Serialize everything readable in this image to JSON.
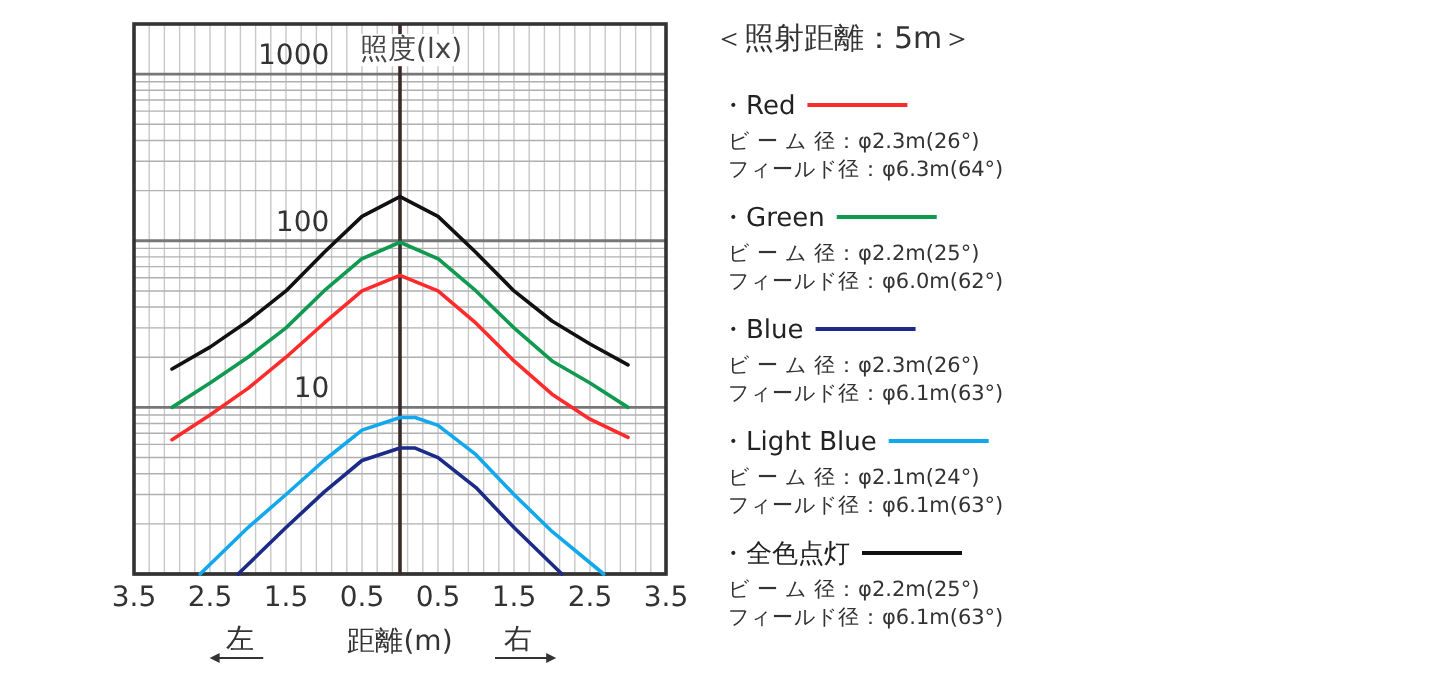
{
  "chart_data": {
    "type": "line",
    "title": "＜照射距離：5m＞",
    "xlabel": "距離(m)",
    "ylabel": "照度(lx)",
    "annotations": [
      "左",
      "右",
      "ビ ー ム 径：φ2.3m(26°)",
      "フィールド径：φ6.3m(64°)",
      "ビ ー ム 径：φ2.2m(25°)",
      "フィールド径：φ6.0m(62°)",
      "ビ ー ム 径：φ2.3m(26°)",
      "フィールド径：φ6.1m(63°)",
      "ビ ー ム 径：φ2.1m(24°)",
      "フィールド径：φ6.1m(63°)",
      "ビ ー ム 径：φ2.2m(25°)",
      "フィールド径：φ6.1m(63°)"
    ],
    "series": [
      {
        "name": "・Red",
        "color": "#ff2a2a",
        "x": [
          -3.0,
          -2.5,
          -2.0,
          -1.5,
          -1.0,
          -0.5,
          0,
          0.5,
          1.0,
          1.5,
          2.0,
          2.5,
          3.0
        ],
        "values": [
          6.4,
          9,
          13,
          20,
          32,
          50,
          62,
          50,
          32,
          19,
          12,
          8.5,
          6.6
        ]
      },
      {
        "name": "・Green",
        "color": "#109a50",
        "x": [
          -3.0,
          -2.5,
          -2.0,
          -1.5,
          -1.0,
          -0.5,
          0,
          0.5,
          1.0,
          1.5,
          2.0,
          2.5,
          3.0
        ],
        "values": [
          10,
          14,
          20,
          30,
          50,
          78,
          98,
          78,
          50,
          30,
          19,
          14,
          10
        ]
      },
      {
        "name": "・Blue",
        "color": "#1c2a88",
        "x": [
          -2.13,
          -1.5,
          -1.0,
          -0.5,
          0,
          0.2,
          0.5,
          1.0,
          1.5,
          2.13
        ],
        "values": [
          1,
          1.9,
          3.1,
          4.8,
          5.7,
          5.7,
          5.0,
          3.3,
          1.9,
          1
        ]
      },
      {
        "name": "・Light Blue",
        "color": "#12a8ee",
        "x": [
          -2.63,
          -2.0,
          -1.5,
          -1.0,
          -0.5,
          0,
          0.2,
          0.5,
          1.0,
          1.5,
          2.0,
          2.68
        ],
        "values": [
          1,
          1.9,
          3.0,
          4.8,
          7.3,
          8.7,
          8.7,
          7.8,
          5.2,
          3.0,
          1.8,
          1
        ]
      },
      {
        "name": "・全色点灯",
        "color": "#111111",
        "x": [
          -3.0,
          -2.5,
          -2.0,
          -1.5,
          -1.0,
          -0.5,
          0,
          0.5,
          1.0,
          1.5,
          2.0,
          2.5,
          3.0
        ],
        "values": [
          17,
          23,
          33,
          50,
          85,
          140,
          184,
          140,
          85,
          50,
          33,
          24,
          18
        ]
      }
    ],
    "xlim": [
      -3.5,
      3.5
    ],
    "xticks": [
      {
        "value": -3.5,
        "label": "3.5"
      },
      {
        "value": -2.5,
        "label": "2.5"
      },
      {
        "value": -1.5,
        "label": "1.5"
      },
      {
        "value": -0.5,
        "label": "0.5"
      },
      0.5,
      1.5,
      2.5,
      3.5
    ],
    "ylim": [
      1,
      2000
    ],
    "yticks": [
      {
        "value": 1,
        "label": null
      },
      10,
      100,
      1000
    ],
    "log": true,
    "grid": true,
    "legend": "right"
  }
}
